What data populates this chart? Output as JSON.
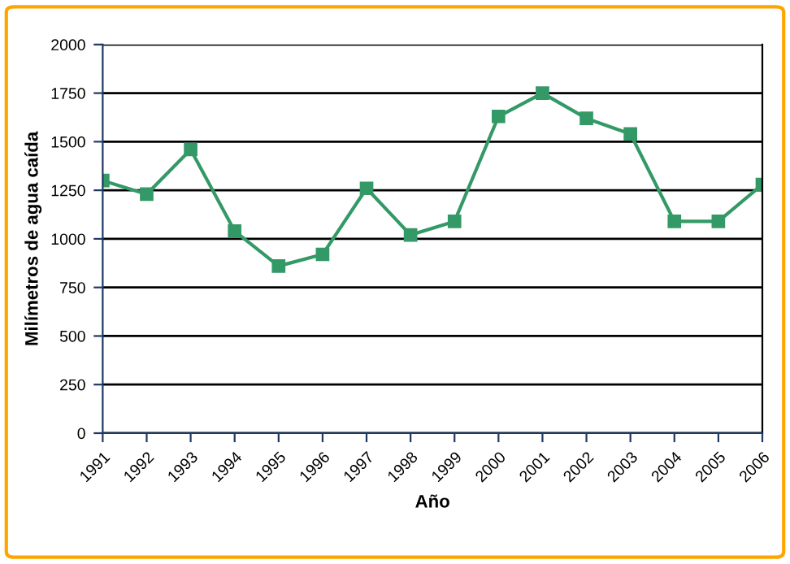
{
  "chart_data": {
    "type": "line",
    "xlabel": "Año",
    "ylabel": "Milímetros de agua caída",
    "x": [
      1991,
      1992,
      1993,
      1994,
      1995,
      1996,
      1997,
      1998,
      1999,
      2000,
      2001,
      2002,
      2003,
      2004,
      2005,
      2006
    ],
    "series": [
      {
        "color": "#339966",
        "values": [
          1300,
          1230,
          1460,
          1040,
          860,
          920,
          1260,
          1020,
          1090,
          1630,
          1750,
          1620,
          1540,
          1090,
          1090,
          1280
        ]
      }
    ],
    "xlim": [
      1991,
      2006
    ],
    "xticks": [
      1991,
      1992,
      1993,
      1994,
      1995,
      1996,
      1997,
      1998,
      1999,
      2000,
      2001,
      2002,
      2003,
      2004,
      2005,
      2006
    ],
    "ylim": [
      0,
      2000
    ],
    "yticks": [
      0,
      250,
      500,
      750,
      1000,
      1250,
      1500,
      1750,
      2000
    ],
    "grid": "y",
    "marker": "square",
    "line_style": "solid"
  }
}
